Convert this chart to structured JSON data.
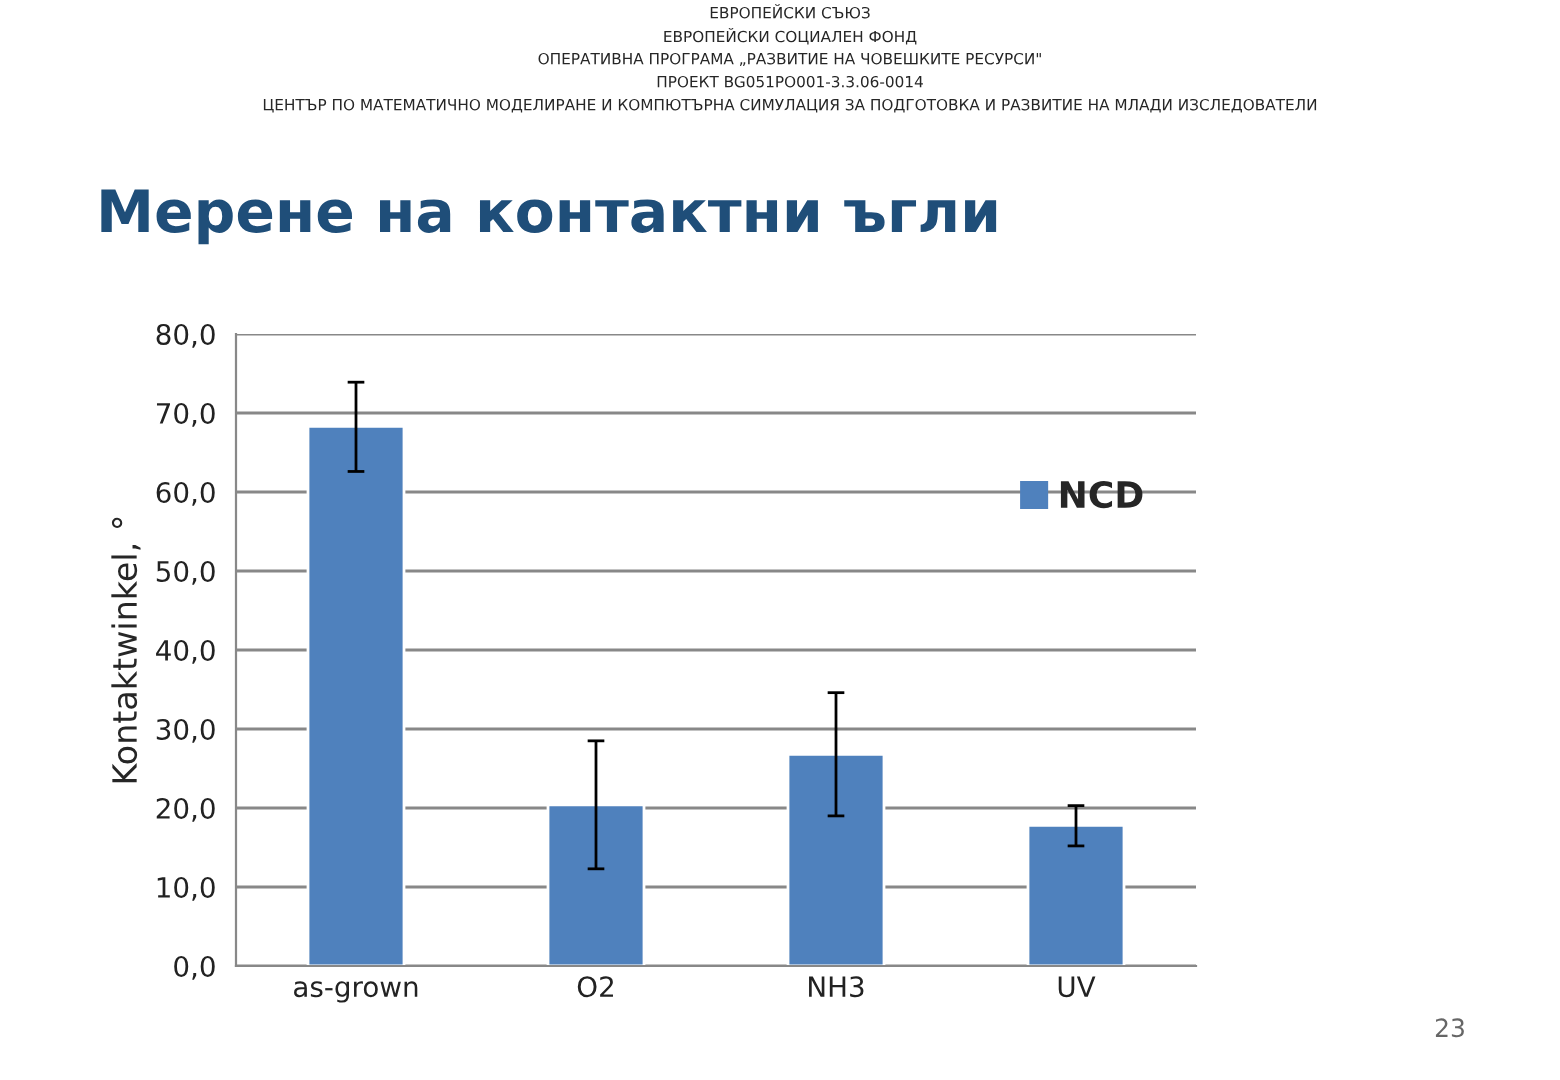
{
  "chart_data": {
    "type": "bar",
    "title": "Мерене на контактни ъгли",
    "annotations": [
      "ЕВРОПЕЙСКИ СЪЮЗ",
      "ЕВРОПЕЙСКИ СОЦИАЛЕН ФОНД",
      "ОПЕРАТИВНА ПРОГРАМА „РАЗВИТИЕ НА ЧОВЕШКИТЕ РЕСУРСИ\"",
      "ПРОЕКТ BG051PO001-3.3.06-0014",
      "ЦЕНТЪР ПО МАТЕМАТИЧНО МОДЕЛИРАНЕ И КОМПЮТЪРНА СИМУЛАЦИЯ ЗА ПОДГОТОВКА И РАЗВИТИЕ НА МЛАДИ ИЗСЛЕДОВАТЕЛИ",
      "23"
    ],
    "ylabel": "Kontaktwinkel, °",
    "categories": [
      "as-grown",
      "O2",
      "NH3",
      "UV"
    ],
    "series": [
      {
        "name": "NCD",
        "color": "#4f81bd",
        "values": [
          68.3,
          20.4,
          26.8,
          17.8
        ],
        "errors": [
          [
            62.6,
            73.9
          ],
          [
            12.3,
            28.5
          ],
          [
            19.0,
            34.6
          ],
          [
            15.2,
            20.3
          ]
        ]
      }
    ],
    "ylim": [
      0,
      80
    ],
    "yticks": [
      {
        "value": 0,
        "label": "0,0"
      },
      {
        "value": 10,
        "label": "10,0"
      },
      {
        "value": 20,
        "label": "20,0"
      },
      {
        "value": 30,
        "label": "30,0"
      },
      {
        "value": 40,
        "label": "40,0"
      },
      {
        "value": 50,
        "label": "50,0"
      },
      {
        "value": 60,
        "label": "60,0"
      },
      {
        "value": 70,
        "label": "70,0"
      },
      {
        "value": 80,
        "label": "80,0"
      }
    ],
    "grid": "y",
    "legend": "top right"
  }
}
